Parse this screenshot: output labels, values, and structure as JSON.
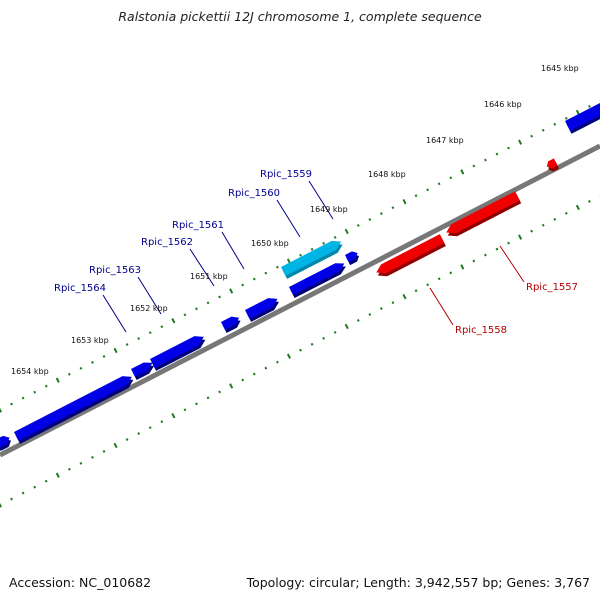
{
  "title": "Ralstonia pickettii 12J chromosome 1, complete sequence",
  "footer": {
    "accession_label": "Accession:",
    "accession": "NC_010682",
    "topology_label": "Topology:",
    "topology": "circular;",
    "length_label": "Length:",
    "length": "3,942,557 bp;",
    "genes_label": "Genes:",
    "genes": "3,767"
  },
  "colors": {
    "forward_gene": "#0000e6",
    "forward_gene_highlight": "#00b4e6",
    "reverse_gene": "#f00000",
    "backbone": "#777777",
    "tick": "#1e7a1e",
    "forward_label": "#00008b",
    "reverse_label": "#b40000"
  },
  "ticks": [
    "1645 kbp",
    "1646 kbp",
    "1647 kbp",
    "1648 kbp",
    "1649 kbp",
    "1650 kbp",
    "1651 kbp",
    "1652 kbp",
    "1653 kbp",
    "1654 kbp"
  ],
  "genes": [
    {
      "name": "Rpic_1557",
      "strand": "reverse"
    },
    {
      "name": "Rpic_1558",
      "strand": "reverse"
    },
    {
      "name": "Rpic_1559",
      "strand": "forward",
      "highlight": true
    },
    {
      "name": "Rpic_1560",
      "strand": "forward"
    },
    {
      "name": "Rpic_1561",
      "strand": "forward"
    },
    {
      "name": "Rpic_1562",
      "strand": "forward"
    },
    {
      "name": "Rpic_1563",
      "strand": "forward"
    },
    {
      "name": "Rpic_1564",
      "strand": "forward"
    }
  ]
}
